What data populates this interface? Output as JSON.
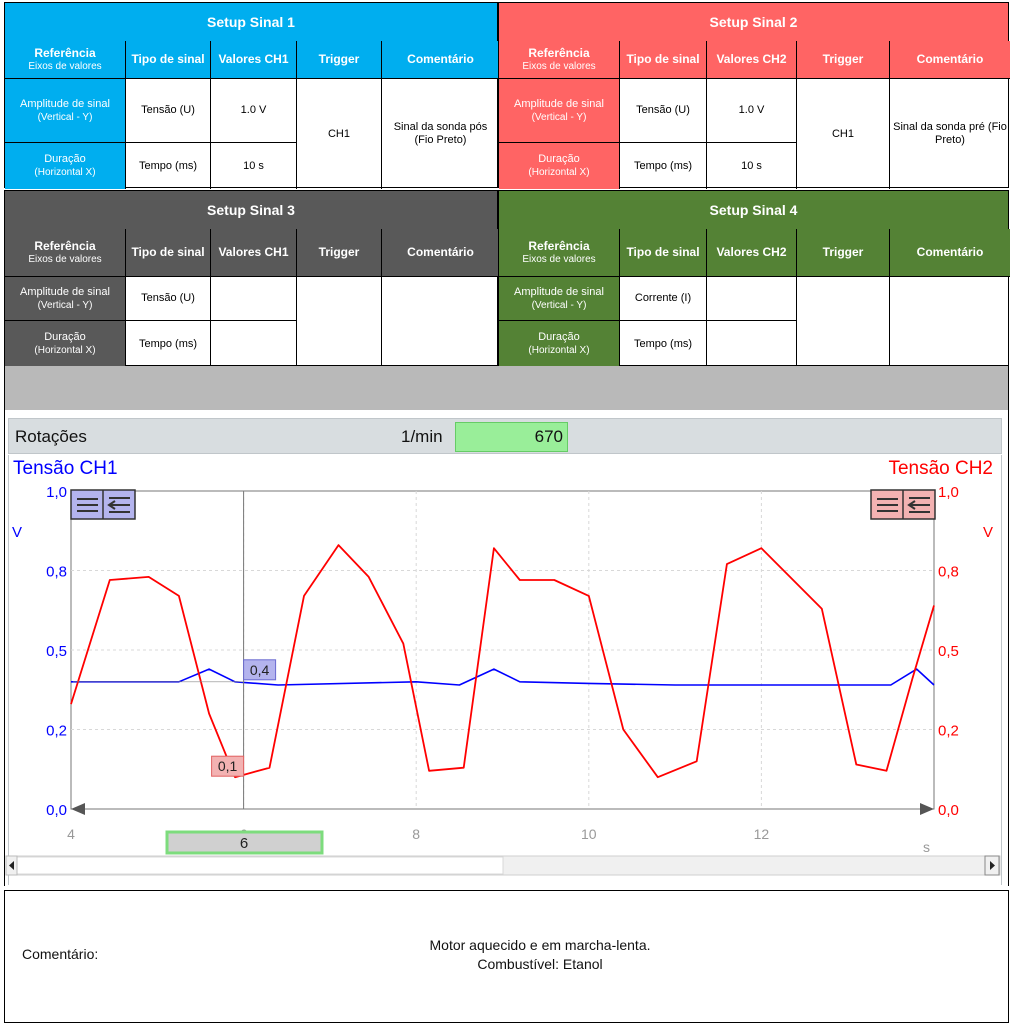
{
  "colors": {
    "setup1": "#00aeef",
    "setup2": "#ff6464",
    "setup3": "#595959",
    "setup4": "#548235",
    "ch1": "#0000ff",
    "ch2": "#ff0000"
  },
  "setups": [
    {
      "title": "Setup Sinal 1",
      "headers": {
        "ref": "Referência",
        "ref_sub": "Eixos de valores",
        "type": "Tipo de sinal",
        "values": "Valores CH1",
        "trigger": "Trigger",
        "comment": "Comentário"
      },
      "rows": [
        {
          "label": "Amplitude de sinal",
          "label_sub": "(Vertical - Y)",
          "type": "Tensão (U)",
          "value": "1.0 V"
        },
        {
          "label": "Duração",
          "label_sub": "(Horizontal X)",
          "type": "Tempo (ms)",
          "value": "10 s"
        }
      ],
      "trigger": "CH1",
      "comment": "Sinal da sonda pós (Fio Preto)"
    },
    {
      "title": "Setup Sinal 2",
      "headers": {
        "ref": "Referência",
        "ref_sub": "Eixos de valores",
        "type": "Tipo de sinal",
        "values": "Valores CH2",
        "trigger": "Trigger",
        "comment": "Comentário"
      },
      "rows": [
        {
          "label": "Amplitude de sinal",
          "label_sub": "(Vertical - Y)",
          "type": "Tensão (U)",
          "value": "1.0 V"
        },
        {
          "label": "Duração",
          "label_sub": "(Horizontal X)",
          "type": "Tempo (ms)",
          "value": "10 s"
        }
      ],
      "trigger": "CH1",
      "comment": "Sinal da sonda pré (Fio Preto)"
    },
    {
      "title": "Setup Sinal 3",
      "headers": {
        "ref": "Referência",
        "ref_sub": "Eixos de valores",
        "type": "Tipo de sinal",
        "values": "Valores CH1",
        "trigger": "Trigger",
        "comment": "Comentário"
      },
      "rows": [
        {
          "label": "Amplitude de sinal",
          "label_sub": "(Vertical - Y)",
          "type": "Tensão (U)",
          "value": ""
        },
        {
          "label": "Duração",
          "label_sub": "(Horizontal X)",
          "type": "Tempo (ms)",
          "value": ""
        }
      ],
      "trigger": "",
      "comment": ""
    },
    {
      "title": "Setup Sinal 4",
      "headers": {
        "ref": "Referência",
        "ref_sub": "Eixos de valores",
        "type": "Tipo de sinal",
        "values": "Valores CH2",
        "trigger": "Trigger",
        "comment": "Comentário"
      },
      "rows": [
        {
          "label": "Amplitude de sinal",
          "label_sub": "(Vertical - Y)",
          "type": "Corrente (I)",
          "value": ""
        },
        {
          "label": "Duração",
          "label_sub": "(Horizontal X)",
          "type": "Tempo (ms)",
          "value": ""
        }
      ],
      "trigger": "",
      "comment": ""
    }
  ],
  "scope": {
    "rpm_label": "Rotações",
    "rpm_unit": "1/min",
    "rpm_value": "670",
    "time_cursor": "6"
  },
  "chart_data": {
    "type": "line",
    "x_ticks": [
      "4",
      "6",
      "8",
      "10",
      "12"
    ],
    "x_unit": "s",
    "xlim": [
      4,
      14
    ],
    "ylim": [
      0,
      1
    ],
    "y_ticks": [
      "0,0",
      "0,2",
      "0,5",
      "0,8",
      "1,0"
    ],
    "y_unit_left": "V",
    "y_unit_right": "V",
    "left_axis_title": "Tensão CH1",
    "right_axis_title": "Tensão CH2",
    "cursor_x": 6,
    "cursor_labels": {
      "ch1": "0,4",
      "ch2": "0,1"
    },
    "series": [
      {
        "name": "Tensão CH1",
        "color": "#0000ff",
        "x": [
          4,
          5.25,
          5.6,
          5.9,
          6.4,
          8.0,
          8.5,
          8.9,
          9.2,
          10.0,
          11.0,
          12.0,
          13.0,
          13.5,
          13.8,
          14.0
        ],
        "values": [
          0.4,
          0.4,
          0.44,
          0.4,
          0.39,
          0.4,
          0.39,
          0.44,
          0.4,
          0.395,
          0.39,
          0.39,
          0.39,
          0.39,
          0.44,
          0.39
        ]
      },
      {
        "name": "Tensão CH2",
        "color": "#ff0000",
        "x": [
          4,
          4.45,
          4.9,
          5.25,
          5.6,
          5.9,
          6.3,
          6.7,
          7.1,
          7.45,
          7.85,
          8.15,
          8.55,
          8.9,
          9.2,
          9.6,
          10.0,
          10.4,
          10.8,
          11.25,
          11.6,
          12.0,
          12.7,
          13.1,
          13.45,
          13.75,
          14.0
        ],
        "values": [
          0.33,
          0.72,
          0.73,
          0.67,
          0.3,
          0.1,
          0.13,
          0.67,
          0.83,
          0.73,
          0.52,
          0.12,
          0.13,
          0.82,
          0.72,
          0.72,
          0.67,
          0.25,
          0.1,
          0.15,
          0.77,
          0.82,
          0.63,
          0.14,
          0.12,
          0.41,
          0.64
        ]
      }
    ]
  },
  "comment": {
    "label": "Comentário:",
    "line1": "Motor aquecido e em marcha-lenta.",
    "line2": "Combustível: Etanol"
  }
}
